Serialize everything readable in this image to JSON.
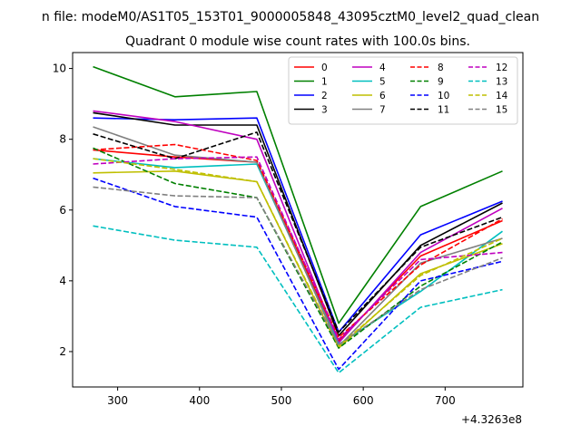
{
  "chart_data": {
    "type": "line",
    "suptitle": "n file: modeM0/AS1T05_153T01_9000005848_43095cztM0_level2_quad_clean",
    "title": "Quadrant 0 module wise count rates with 100.0s bins.",
    "xlabel": "",
    "ylabel": "",
    "x_offset_label": "+4.3263e8",
    "x": [
      270,
      370,
      470,
      570,
      670,
      770
    ],
    "xlim": [
      245,
      795
    ],
    "ylim": [
      1.0,
      10.45
    ],
    "xticks": [
      300,
      400,
      500,
      600,
      700
    ],
    "yticks": [
      2,
      4,
      6,
      8,
      10
    ],
    "grid": false,
    "legend": {
      "placement": "top-right",
      "columns": 4
    },
    "series": [
      {
        "name": "0",
        "color": "#ff0000",
        "dash": "solid",
        "values": [
          7.7,
          7.5,
          7.35,
          2.3,
          4.7,
          5.7
        ]
      },
      {
        "name": "1",
        "color": "#008000",
        "dash": "solid",
        "values": [
          10.05,
          9.2,
          9.35,
          2.8,
          6.1,
          7.1
        ]
      },
      {
        "name": "2",
        "color": "#0000ff",
        "dash": "solid",
        "values": [
          8.6,
          8.55,
          8.6,
          2.55,
          5.3,
          6.25
        ]
      },
      {
        "name": "3",
        "color": "#000000",
        "dash": "solid",
        "values": [
          8.75,
          8.4,
          8.4,
          2.45,
          5.0,
          6.2
        ]
      },
      {
        "name": "4",
        "color": "#bf00bf",
        "dash": "solid",
        "values": [
          8.8,
          8.5,
          8.0,
          2.25,
          4.8,
          6.05
        ]
      },
      {
        "name": "5",
        "color": "#00bfbf",
        "dash": "solid",
        "values": [
          7.45,
          7.2,
          7.3,
          2.2,
          3.7,
          5.4
        ]
      },
      {
        "name": "6",
        "color": "#bfbf00",
        "dash": "solid",
        "values": [
          7.05,
          7.1,
          6.8,
          2.1,
          4.2,
          5.05
        ]
      },
      {
        "name": "7",
        "color": "#808080",
        "dash": "solid",
        "values": [
          8.35,
          7.55,
          7.35,
          2.15,
          4.5,
          5.2
        ]
      },
      {
        "name": "8",
        "color": "#ff0000",
        "dash": "dashed",
        "values": [
          7.7,
          7.85,
          7.4,
          2.4,
          4.45,
          5.75
        ]
      },
      {
        "name": "9",
        "color": "#008000",
        "dash": "dashed",
        "values": [
          7.75,
          6.75,
          6.35,
          2.1,
          3.85,
          5.1
        ]
      },
      {
        "name": "10",
        "color": "#0000ff",
        "dash": "dashed",
        "values": [
          6.9,
          6.1,
          5.8,
          1.5,
          4.0,
          4.55
        ]
      },
      {
        "name": "11",
        "color": "#000000",
        "dash": "dashed",
        "values": [
          8.15,
          7.45,
          8.2,
          2.55,
          4.95,
          5.8
        ]
      },
      {
        "name": "12",
        "color": "#bf00bf",
        "dash": "dashed",
        "values": [
          7.3,
          7.45,
          7.5,
          2.35,
          4.6,
          4.8
        ]
      },
      {
        "name": "13",
        "color": "#00bfbf",
        "dash": "dashed",
        "values": [
          5.55,
          5.15,
          4.95,
          1.4,
          3.25,
          3.75
        ]
      },
      {
        "name": "14",
        "color": "#bfbf00",
        "dash": "dashed",
        "values": [
          7.45,
          7.15,
          6.8,
          2.15,
          4.15,
          5.2
        ]
      },
      {
        "name": "15",
        "color": "#808080",
        "dash": "dashed",
        "values": [
          6.65,
          6.4,
          6.35,
          2.2,
          3.75,
          4.65
        ]
      }
    ]
  }
}
